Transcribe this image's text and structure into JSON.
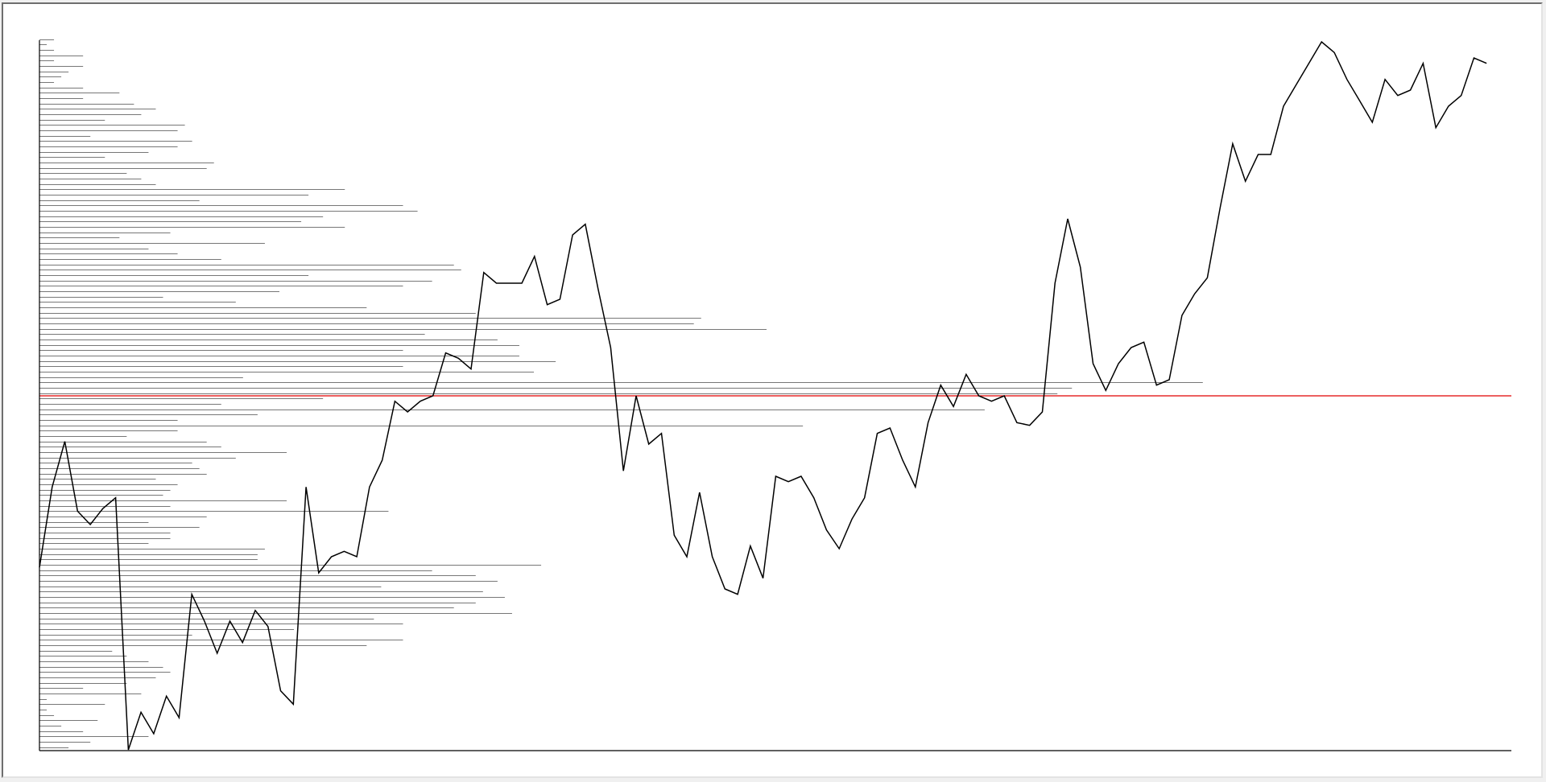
{
  "chart_data": {
    "type": "line",
    "title": "",
    "xlabel": "",
    "ylabel": "",
    "xlim": [
      0,
      115
    ],
    "ylim": [
      0,
      132
    ],
    "reference_line": {
      "y": 66,
      "color": "#e00000"
    },
    "series": [
      {
        "color": "#000000",
        "values": [
          34,
          49,
          57.5,
          44.5,
          42,
          45,
          47,
          0,
          7,
          3,
          10,
          6,
          29,
          24,
          18,
          24,
          20,
          26,
          23,
          11,
          8.5,
          49,
          33,
          36,
          37,
          36,
          49,
          54,
          65,
          63,
          65,
          66,
          74,
          73,
          71,
          89,
          87,
          87,
          87,
          92,
          83,
          84,
          96,
          98,
          86,
          75,
          52,
          66,
          57,
          59,
          40,
          36,
          48,
          36,
          30,
          29,
          38,
          32,
          51,
          50,
          51,
          47,
          41,
          37.5,
          43,
          47,
          59,
          60,
          54,
          49,
          61,
          68,
          64,
          70,
          66,
          65,
          66,
          61,
          60.5,
          63,
          87,
          99,
          90,
          72,
          67,
          72,
          75,
          76,
          68,
          69,
          81,
          85,
          88,
          101,
          113,
          106,
          111,
          111,
          120,
          124,
          128,
          132,
          130,
          125,
          121,
          117,
          125,
          122,
          123,
          128,
          116,
          120,
          122,
          129,
          128
        ]
      }
    ],
    "profile": {
      "color": "#777777",
      "max_value": 20,
      "y_start": 0,
      "bin_height": 1,
      "lengths": [
        0.4,
        0.7,
        1.5,
        0.6,
        0.3,
        0.8,
        0.2,
        0.1,
        0.9,
        0.1,
        1.4,
        0.6,
        1.2,
        1.6,
        1.8,
        1.7,
        1.5,
        1.2,
        1.0,
        4.5,
        5.0,
        2.1,
        3.5,
        5.0,
        4.6,
        6.5,
        5.7,
        6.0,
        6.4,
        6.1,
        4.7,
        6.3,
        6.0,
        5.4,
        6.9,
        3.0,
        3.0,
        3.1,
        1.5,
        1.8,
        1.8,
        2.2,
        1.5,
        2.3,
        4.8,
        1.8,
        3.4,
        1.7,
        1.8,
        1.9,
        1.6,
        2.3,
        2.2,
        2.1,
        2.7,
        3.4,
        2.5,
        2.3,
        1.2,
        1.9,
        10.5,
        1.9,
        3.0,
        13.0,
        2.5,
        3.9,
        14.0,
        14.2,
        16.0,
        2.8,
        6.8,
        5.0,
        7.1,
        6.6,
        5.0,
        6.6,
        6.3,
        5.3,
        10.0,
        9.0,
        9.1,
        6.0,
        4.5,
        2.7,
        1.7,
        3.3,
        5.0,
        5.4,
        3.7,
        5.8,
        5.7,
        2.5,
        1.9,
        1.5,
        3.1,
        1.1,
        1.8,
        4.2,
        3.6,
        3.9,
        5.2,
        5.0,
        2.2,
        3.7,
        4.2,
        1.6,
        1.4,
        1.2,
        2.3,
        2.4,
        0.9,
        1.5,
        1.9,
        2.1,
        0.7,
        1.9,
        2.0,
        0.9,
        1.4,
        1.6,
        1.3,
        0.6,
        1.1,
        0.6,
        0.2,
        0.3,
        0.4,
        0.6,
        0.2,
        0.6,
        0.2,
        0.1,
        0.2
      ]
    }
  }
}
